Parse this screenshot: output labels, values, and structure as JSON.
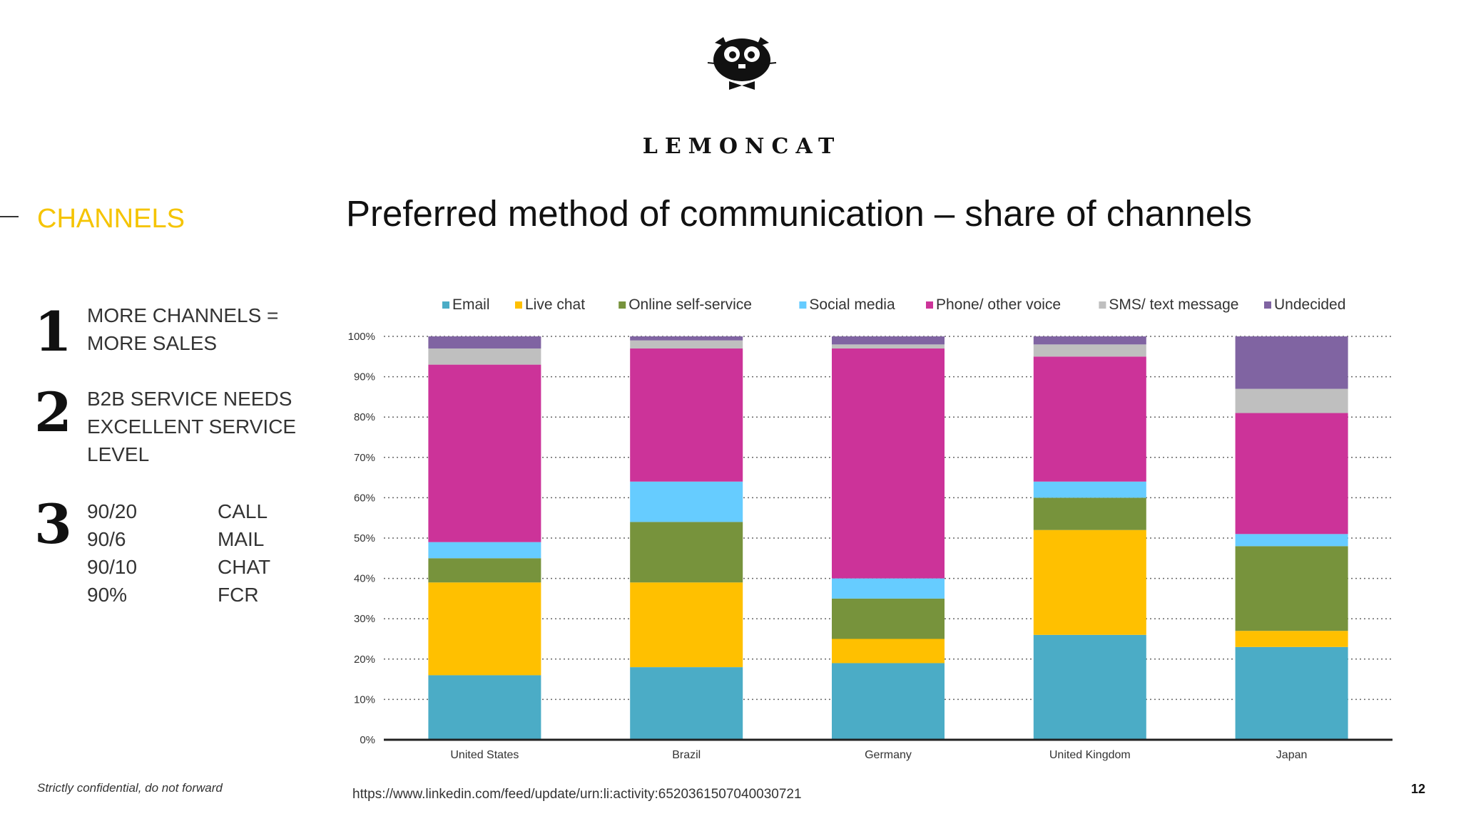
{
  "brand": {
    "name": "LEMONCAT"
  },
  "section": {
    "title": "CHANNELS"
  },
  "points": [
    {
      "number": "1",
      "lines": [
        "MORE CHANNELS =",
        "MORE SALES"
      ]
    },
    {
      "number": "2",
      "lines": [
        "B2B SERVICE NEEDS",
        "EXCELLENT SERVICE",
        "LEVEL"
      ]
    },
    {
      "number": "3"
    }
  ],
  "kpis": [
    {
      "value": "90/20",
      "channel": "CALL"
    },
    {
      "value": "90/6",
      "channel": "MAIL"
    },
    {
      "value": "90/10",
      "channel": "CHAT"
    },
    {
      "value": "90%",
      "channel": "FCR"
    }
  ],
  "footer": {
    "confidential": "Strictly confidential, do not forward",
    "source": "https://www.linkedin.com/feed/update/urn:li:activity:6520361507040030721",
    "page": "12"
  },
  "colors": {
    "Email": "#4bacc6",
    "Live chat": "#ffc000",
    "Online self-service": "#77933c",
    "Social media": "#66ccff",
    "Phone/ other voice": "#cc3399",
    "SMS/ text message": "#bfbfbf",
    "Undecided": "#8064a2",
    "accent": "#f5c400"
  },
  "chart_data": {
    "type": "bar",
    "stacked": true,
    "title": "Preferred method of communication – share of channels",
    "categories": [
      "United States",
      "Brazil",
      "Germany",
      "United Kingdom",
      "Japan"
    ],
    "y_ticks": [
      "0%",
      "10%",
      "20%",
      "30%",
      "40%",
      "50%",
      "60%",
      "70%",
      "80%",
      "90%",
      "100%"
    ],
    "ylim": [
      0,
      100
    ],
    "grid": "dotted horizontal",
    "legend": "top",
    "series": [
      {
        "name": "Email",
        "values": [
          16,
          18,
          19,
          26,
          23
        ]
      },
      {
        "name": "Live chat",
        "values": [
          23,
          21,
          6,
          26,
          4
        ]
      },
      {
        "name": "Online self-service",
        "values": [
          6,
          15,
          10,
          8,
          21
        ]
      },
      {
        "name": "Social media",
        "values": [
          4,
          10,
          5,
          4,
          3
        ]
      },
      {
        "name": "Phone/ other voice",
        "values": [
          44,
          33,
          57,
          31,
          30
        ]
      },
      {
        "name": "SMS/ text message",
        "values": [
          4,
          2,
          1,
          3,
          6
        ]
      },
      {
        "name": "Undecided",
        "values": [
          3,
          1,
          2,
          2,
          13
        ]
      }
    ]
  }
}
